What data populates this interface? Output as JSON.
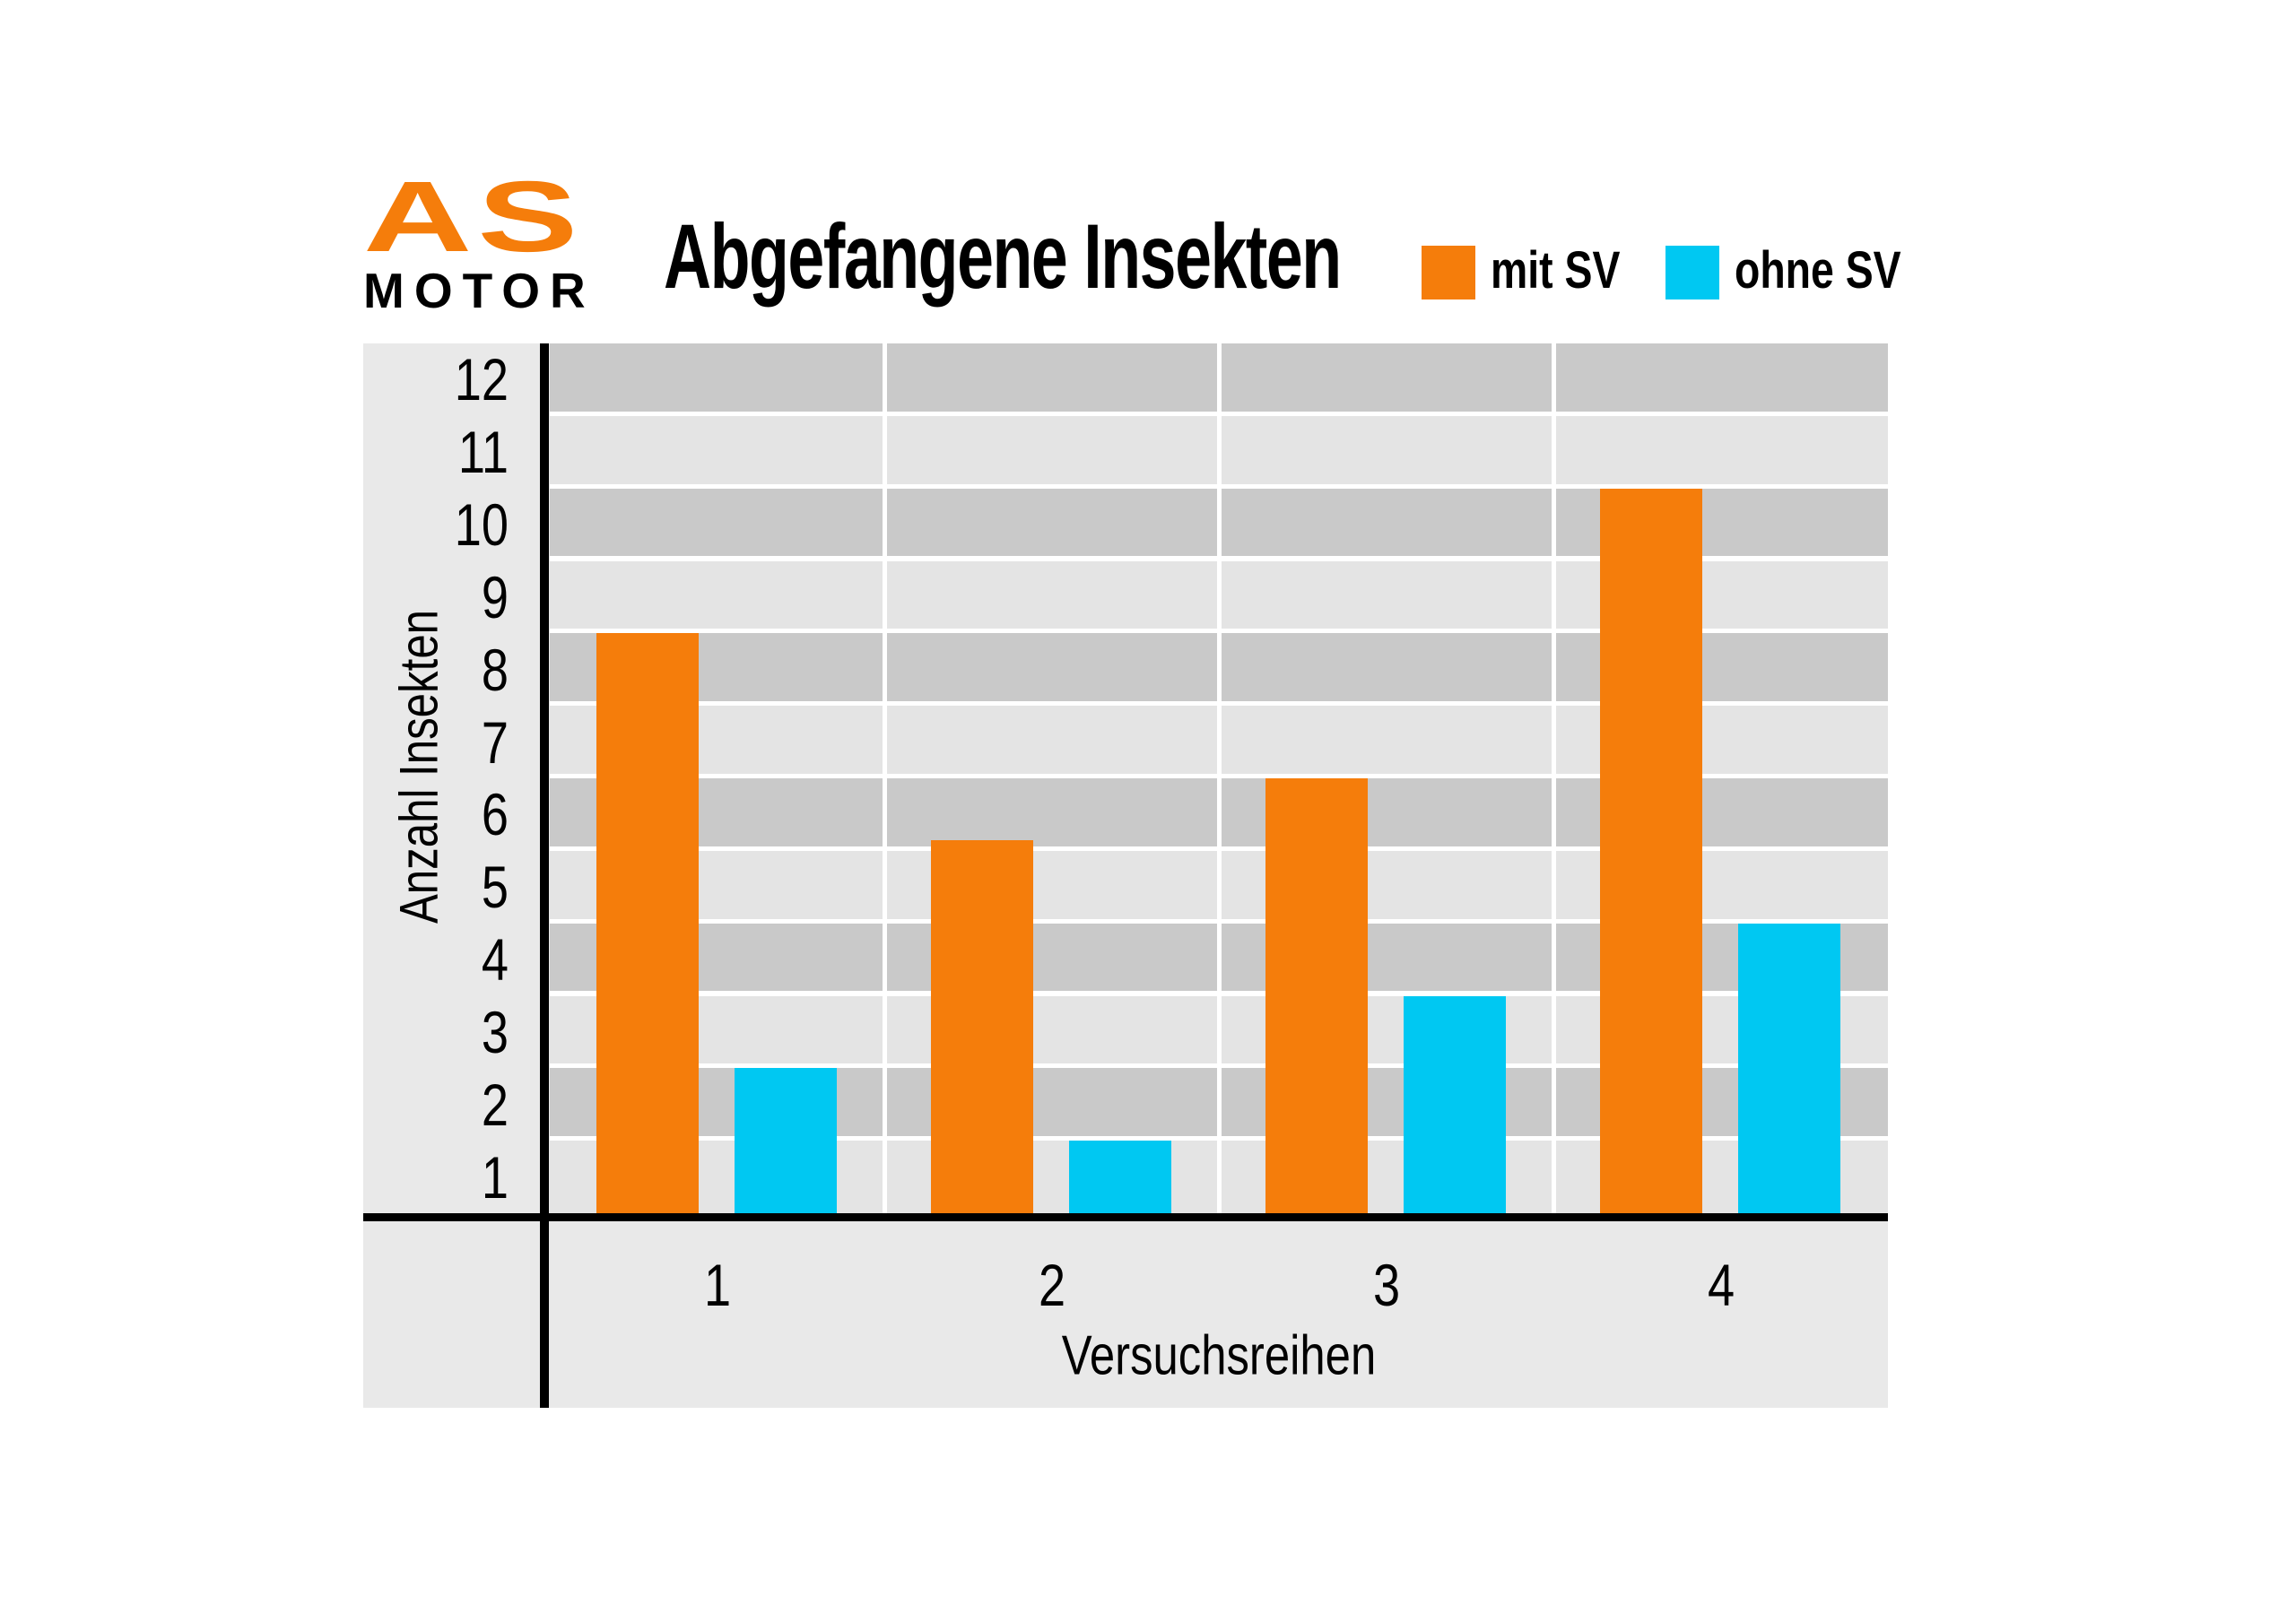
{
  "logo": {
    "text_top": "AS",
    "text_bottom": "MOTOR",
    "color_top": "#F57D0B",
    "color_bottom": "#000000"
  },
  "title": "Abgefangene Insekten",
  "chart_data": {
    "type": "bar",
    "title": "Abgefangene Insekten",
    "xlabel": "Versuchsreihen",
    "ylabel": "Anzahl Insekten",
    "categories": [
      "1",
      "2",
      "3",
      "4"
    ],
    "series": [
      {
        "name": "mit SV",
        "color": "#F57D0B",
        "values": [
          8,
          5.15,
          6,
          10
        ]
      },
      {
        "name": "ohne SV",
        "color": "#00C8F2",
        "values": [
          2,
          1,
          3,
          4
        ]
      }
    ],
    "ylim": [
      0,
      12
    ],
    "y_ticks": [
      1,
      2,
      3,
      4,
      5,
      6,
      7,
      8,
      9,
      10,
      11,
      12
    ],
    "grid": "12 horizontal unit bands alternating dark/light gray separated by thin white lines; 3 vertical white separators between category columns",
    "tick_label_convention": "y tick label n sits vertically centered in the band spanning n-1..n; bar heights above are in band units from the baseline",
    "reading_against_labels": {
      "mit SV": [
        8.5,
        5.6,
        6.5,
        10.5
      ],
      "ohne SV": [
        2.5,
        1.5,
        3.5,
        4.5
      ]
    },
    "legend_position": "top-right"
  },
  "colors": {
    "accent_orange": "#F57D0B",
    "accent_cyan": "#00C8F2",
    "band_dark": "#C9C9C9",
    "band_light": "#E4E4E4",
    "chart_margin_gray": "#E9E9E9",
    "axis": "#000000",
    "grid_line": "#FFFFFF",
    "page_background": "#FFFFFF"
  }
}
